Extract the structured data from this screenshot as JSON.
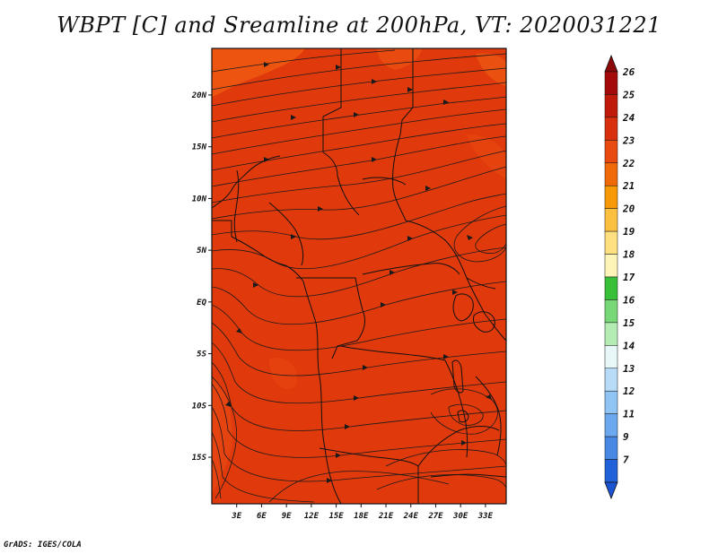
{
  "title": "WBPT [C] and Sreamline at 200hPa, VT: 2020031221",
  "credit": "GrADS: IGES/COLA",
  "map": {
    "lon_range": [
      0,
      35.5
    ],
    "lat_range": [
      -19.5,
      24.5
    ],
    "background_color": "#e03a0c",
    "lat_ticks": [
      {
        "value": 20,
        "label": "20N"
      },
      {
        "value": 15,
        "label": "15N"
      },
      {
        "value": 10,
        "label": "10N"
      },
      {
        "value": 5,
        "label": "5N"
      },
      {
        "value": 0,
        "label": "EQ"
      },
      {
        "value": -5,
        "label": "5S"
      },
      {
        "value": -10,
        "label": "10S"
      },
      {
        "value": -15,
        "label": "15S"
      }
    ],
    "lon_ticks": [
      {
        "value": 3,
        "label": "3E"
      },
      {
        "value": 6,
        "label": "6E"
      },
      {
        "value": 9,
        "label": "9E"
      },
      {
        "value": 12,
        "label": "12E"
      },
      {
        "value": 15,
        "label": "15E"
      },
      {
        "value": 18,
        "label": "18E"
      },
      {
        "value": 21,
        "label": "21E"
      },
      {
        "value": 24,
        "label": "24E"
      },
      {
        "value": 27,
        "label": "27E"
      },
      {
        "value": 30,
        "label": "30E"
      },
      {
        "value": 33,
        "label": "33E"
      }
    ]
  },
  "colorbar": {
    "levels": [
      {
        "label": "26",
        "color": "#a50a0a"
      },
      {
        "label": "25",
        "color": "#c01a0a"
      },
      {
        "label": "24",
        "color": "#d8300e"
      },
      {
        "label": "23",
        "color": "#e84a10"
      },
      {
        "label": "22",
        "color": "#f06a0a"
      },
      {
        "label": "21",
        "color": "#f89a08"
      },
      {
        "label": "20",
        "color": "#fcc040"
      },
      {
        "label": "19",
        "color": "#fee080"
      },
      {
        "label": "18",
        "color": "#fff4b8"
      },
      {
        "label": "17",
        "color": "#38c038"
      },
      {
        "label": "16",
        "color": "#78d878"
      },
      {
        "label": "15",
        "color": "#b4ecb4"
      },
      {
        "label": "14",
        "color": "#e8f8f8"
      },
      {
        "label": "13",
        "color": "#b8dcf8"
      },
      {
        "label": "12",
        "color": "#90c4f4"
      },
      {
        "label": "11",
        "color": "#6ca8ee"
      },
      {
        "label": "9",
        "color": "#4888e4"
      },
      {
        "label": "7",
        "color": "#2060d8"
      }
    ],
    "top_color": "#8c0808",
    "bottom_color": "#1a54d0"
  }
}
